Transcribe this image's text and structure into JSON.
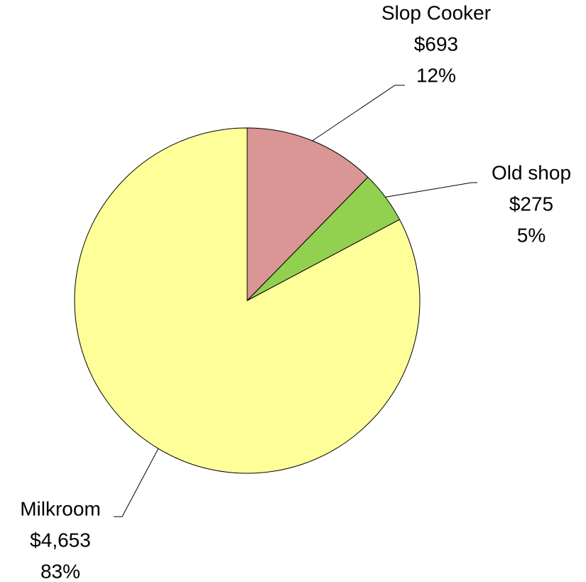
{
  "chart_data": {
    "type": "pie",
    "categories": [
      "Slop Cooker",
      "Old shop",
      "Milkroom"
    ],
    "values": [
      693,
      275,
      4653
    ],
    "value_labels": [
      "$693",
      "$275",
      "$4,653"
    ],
    "percent_labels": [
      "12%",
      "5%",
      "83%"
    ],
    "colors": [
      "#d99694",
      "#92d050",
      "#ffff99"
    ]
  }
}
